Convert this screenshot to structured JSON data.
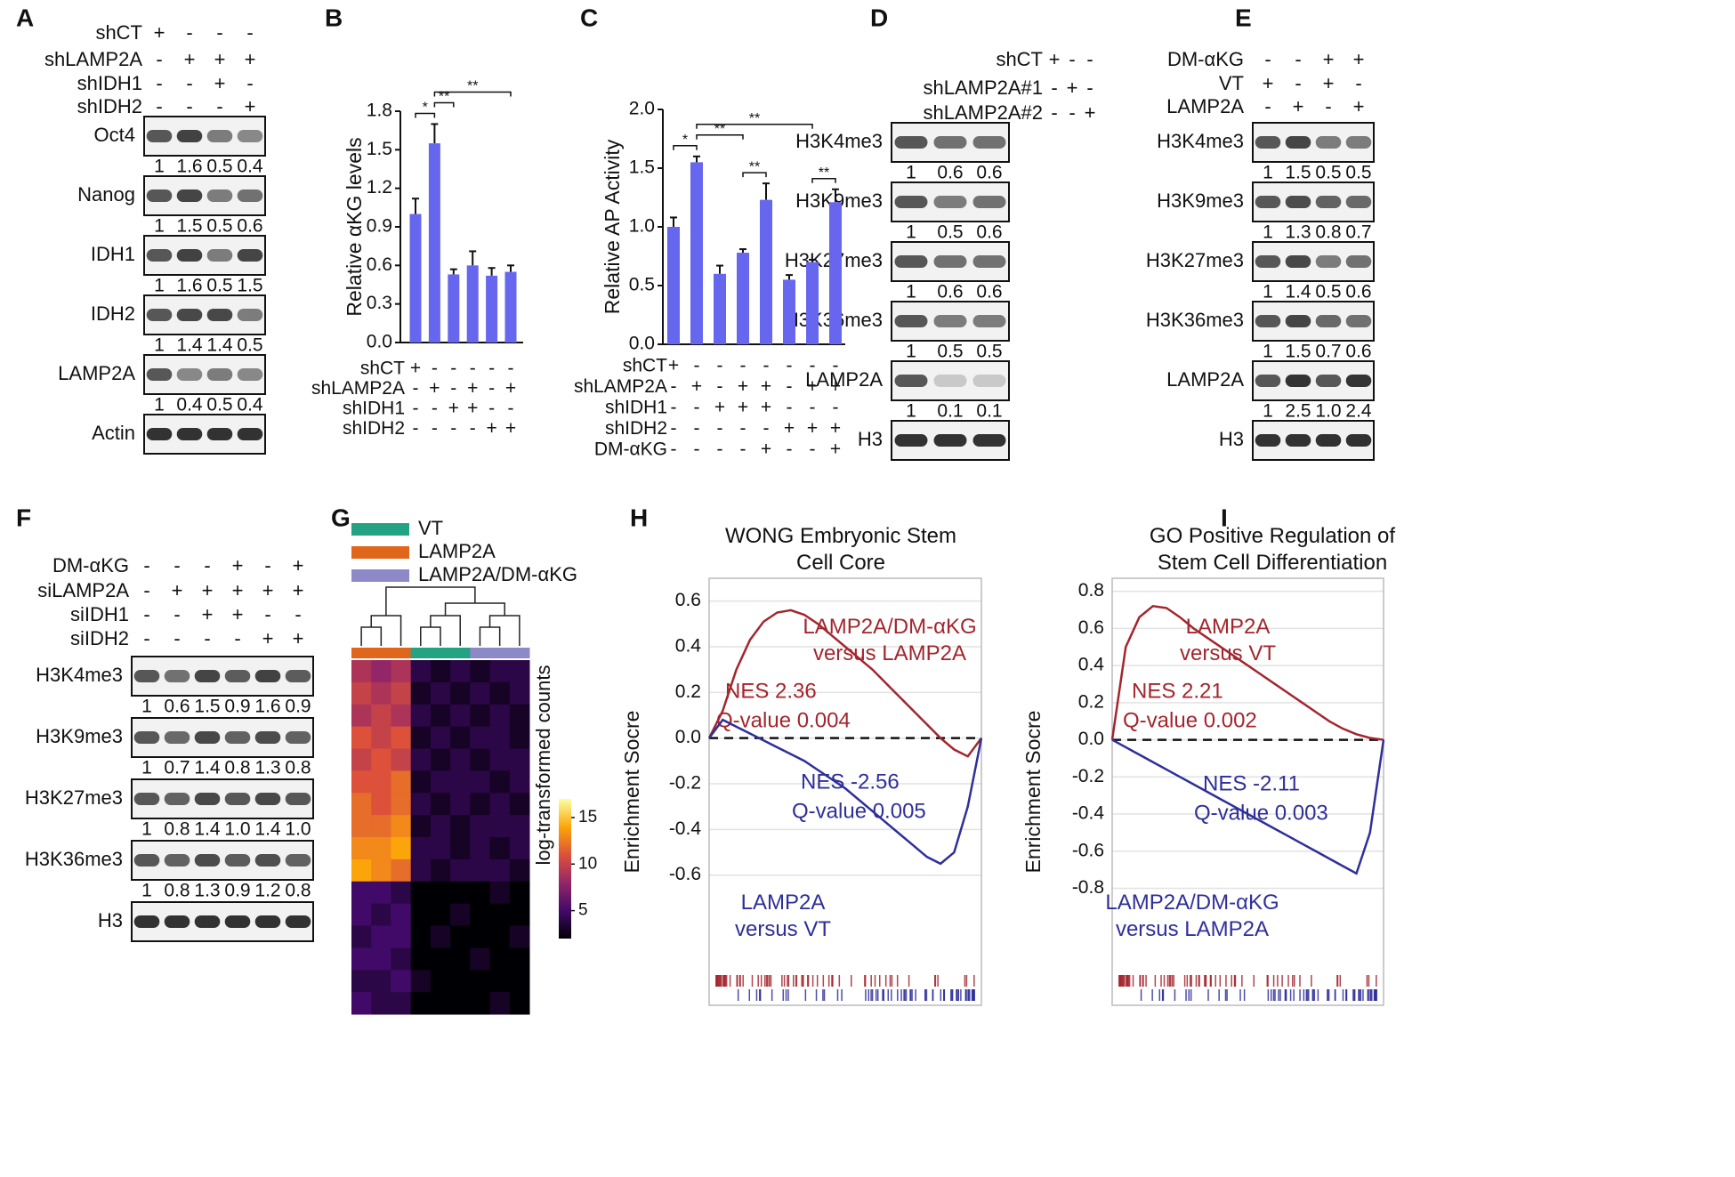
{
  "panel_labels": [
    "A",
    "B",
    "C",
    "D",
    "E",
    "F",
    "G",
    "H",
    "I"
  ],
  "blots": [
    {
      "conditions": [
        {
          "name": "shCT",
          "signs": [
            "+",
            "-",
            "-",
            "-"
          ]
        },
        {
          "name": "shLAMP2A",
          "signs": [
            "-",
            "+",
            "+",
            "+"
          ]
        },
        {
          "name": "shIDH1",
          "signs": [
            "-",
            "-",
            "+",
            "-"
          ]
        },
        {
          "name": "shIDH2",
          "signs": [
            "-",
            "-",
            "-",
            "+"
          ]
        }
      ],
      "rows": [
        {
          "name": "Oct4",
          "quant": [
            1,
            1.6,
            0.5,
            0.4
          ]
        },
        {
          "name": "Nanog",
          "quant": [
            1,
            1.5,
            0.5,
            0.6
          ]
        },
        {
          "name": "IDH1",
          "quant": [
            1,
            1.6,
            0.5,
            1.5
          ]
        },
        {
          "name": "IDH2",
          "quant": [
            1,
            1.4,
            1.4,
            0.5
          ]
        },
        {
          "name": "LAMP2A",
          "quant": [
            1,
            0.4,
            0.5,
            0.4
          ]
        },
        {
          "name": "Actin"
        }
      ]
    },
    {
      "conditions": [
        {
          "name": "shCT",
          "signs": [
            "+",
            "-",
            "-"
          ]
        },
        {
          "name": "shLAMP2A#1",
          "signs": [
            "-",
            "+",
            "-"
          ]
        },
        {
          "name": "shLAMP2A#2",
          "signs": [
            "-",
            "-",
            "+"
          ]
        }
      ],
      "rows": [
        {
          "name": "H3K4me3",
          "quant": [
            1,
            0.6,
            0.6
          ]
        },
        {
          "name": "H3K9me3",
          "quant": [
            1,
            0.5,
            0.6
          ]
        },
        {
          "name": "H3K27me3",
          "quant": [
            1,
            0.6,
            0.6
          ]
        },
        {
          "name": "H3K36me3",
          "quant": [
            1,
            0.5,
            0.5
          ]
        },
        {
          "name": "LAMP2A",
          "quant": [
            1,
            0.1,
            0.1
          ]
        },
        {
          "name": "H3"
        }
      ]
    },
    {
      "conditions": [
        {
          "name": "DM-αKG",
          "signs": [
            "-",
            "-",
            "+",
            "+"
          ]
        },
        {
          "name": "VT",
          "signs": [
            "+",
            "-",
            "+",
            "-"
          ]
        },
        {
          "name": "LAMP2A",
          "signs": [
            "-",
            "+",
            "-",
            "+"
          ]
        }
      ],
      "rows": [
        {
          "name": "H3K4me3",
          "quant": [
            1,
            1.5,
            0.5,
            0.5
          ]
        },
        {
          "name": "H3K9me3",
          "quant": [
            1,
            1.3,
            0.8,
            0.7
          ]
        },
        {
          "name": "H3K27me3",
          "quant": [
            1,
            1.4,
            0.5,
            0.6
          ]
        },
        {
          "name": "H3K36me3",
          "quant": [
            1,
            1.5,
            0.7,
            0.6
          ]
        },
        {
          "name": "LAMP2A",
          "quant": [
            1,
            2.5,
            1.0,
            2.4
          ],
          "quant_labels": [
            "1",
            "2.5",
            "1.0",
            "2.4"
          ]
        },
        {
          "name": "H3"
        }
      ]
    },
    {
      "conditions": [
        {
          "name": "DM-αKG",
          "signs": [
            "-",
            "-",
            "-",
            "+",
            "-",
            "+"
          ]
        },
        {
          "name": "siLAMP2A",
          "signs": [
            "-",
            "+",
            "+",
            "+",
            "+",
            "+"
          ]
        },
        {
          "name": "siIDH1",
          "signs": [
            "-",
            "-",
            "+",
            "+",
            "-",
            "-"
          ]
        },
        {
          "name": "siIDH2",
          "signs": [
            "-",
            "-",
            "-",
            "-",
            "+",
            "+"
          ]
        }
      ],
      "rows": [
        {
          "name": "H3K4me3",
          "quant": [
            1,
            0.6,
            1.5,
            0.9,
            1.6,
            0.9
          ]
        },
        {
          "name": "H3K9me3",
          "quant": [
            1,
            0.7,
            1.4,
            0.8,
            1.3,
            0.8
          ]
        },
        {
          "name": "H3K27me3",
          "quant": [
            1,
            0.8,
            1.4,
            1.0,
            1.4,
            1.0
          ],
          "quant_labels": [
            "1",
            "0.8",
            "1.4",
            "1.0",
            "1.4",
            "1.0"
          ]
        },
        {
          "name": "H3K36me3",
          "quant": [
            1,
            0.8,
            1.3,
            0.9,
            1.2,
            0.8
          ]
        },
        {
          "name": "H3"
        }
      ]
    }
  ],
  "chart_data": [
    {
      "type": "bar",
      "ylabel": "Relative αKG levels",
      "color": "#6666ee",
      "values": [
        1.0,
        1.55,
        0.53,
        0.6,
        0.52,
        0.55
      ],
      "errors": [
        0.12,
        0.15,
        0.04,
        0.11,
        0.06,
        0.05
      ],
      "ylim": [
        0,
        1.8
      ],
      "yticks": [
        {
          "value": 0,
          "label": "0.0"
        },
        0.3,
        0.6,
        0.9,
        1.2,
        1.5,
        1.8
      ],
      "conditions": [
        {
          "name": "shCT",
          "signs": [
            "+",
            "-",
            "-",
            "-",
            "-",
            "-"
          ]
        },
        {
          "name": "shLAMP2A",
          "signs": [
            "-",
            "+",
            "-",
            "+",
            "-",
            "+"
          ]
        },
        {
          "name": "shIDH1",
          "signs": [
            "-",
            "-",
            "+",
            "+",
            "-",
            "-"
          ]
        },
        {
          "name": "shIDH2",
          "signs": [
            "-",
            "-",
            "-",
            "-",
            "+",
            "+"
          ]
        }
      ],
      "significance": [
        {
          "from": 0,
          "to": 1,
          "label": "*"
        },
        {
          "from": 1,
          "to": 2,
          "label": "**"
        },
        {
          "from": 1,
          "to": 5,
          "label": "**"
        }
      ]
    },
    {
      "type": "bar",
      "ylabel": "Relative AP Activity",
      "color": "#6666ee",
      "values": [
        1.0,
        1.55,
        0.6,
        0.78,
        1.23,
        0.55,
        0.7,
        1.21
      ],
      "errors": [
        0.08,
        0.05,
        0.07,
        0.03,
        0.14,
        0.04,
        0.02,
        0.11
      ],
      "ylim": [
        0,
        2.0
      ],
      "yticks": [
        {
          "value": 0,
          "label": "0.0"
        },
        0.5,
        {
          "value": 1,
          "label": "1.0"
        },
        1.5,
        {
          "value": 2,
          "label": "2.0"
        }
      ],
      "conditions": [
        {
          "name": "shCT",
          "signs": [
            "+",
            "-",
            "-",
            "-",
            "-",
            "-",
            "-",
            "-"
          ]
        },
        {
          "name": "shLAMP2A",
          "signs": [
            "-",
            "+",
            "-",
            "+",
            "+",
            "-",
            "+",
            "+"
          ]
        },
        {
          "name": "shIDH1",
          "signs": [
            "-",
            "-",
            "+",
            "+",
            "+",
            "-",
            "-",
            "-"
          ]
        },
        {
          "name": "shIDH2",
          "signs": [
            "-",
            "-",
            "-",
            "-",
            "-",
            "+",
            "+",
            "+"
          ]
        },
        {
          "name": "DM-αKG",
          "signs": [
            "-",
            "-",
            "-",
            "-",
            "+",
            "-",
            "-",
            "+"
          ]
        }
      ],
      "significance": [
        {
          "from": 0,
          "to": 1,
          "label": "*"
        },
        {
          "from": 3,
          "to": 4,
          "label": "**"
        },
        {
          "from": 6,
          "to": 7,
          "label": "**"
        },
        {
          "from": 1,
          "to": 3,
          "label": "**"
        },
        {
          "from": 1,
          "to": 6,
          "label": "**"
        }
      ]
    },
    {
      "type": "heatmap",
      "groups": [
        {
          "name": "VT",
          "color": "#23a383"
        },
        {
          "name": "LAMP2A",
          "color": "#e0661c"
        },
        {
          "name": "LAMP2A/DM-αKG",
          "color": "#8d88c8"
        }
      ],
      "column_groups": [
        1,
        1,
        1,
        0,
        0,
        0,
        2,
        2,
        2
      ],
      "values": [
        [
          9,
          8,
          9,
          4,
          3,
          4,
          3,
          4,
          4
        ],
        [
          10,
          9,
          10,
          3,
          4,
          3,
          4,
          3,
          4
        ],
        [
          9,
          10,
          9,
          4,
          3,
          4,
          3,
          4,
          3
        ],
        [
          11,
          10,
          11,
          3,
          4,
          3,
          4,
          4,
          3
        ],
        [
          10,
          11,
          10,
          4,
          3,
          4,
          3,
          4,
          4
        ],
        [
          11,
          11,
          12,
          3,
          4,
          4,
          4,
          3,
          4
        ],
        [
          12,
          11,
          12,
          4,
          3,
          4,
          3,
          4,
          3
        ],
        [
          12,
          12,
          13,
          3,
          4,
          3,
          4,
          4,
          4
        ],
        [
          13,
          13,
          14,
          4,
          4,
          3,
          4,
          3,
          4
        ],
        [
          14,
          13,
          12,
          4,
          3,
          4,
          4,
          4,
          3
        ],
        [
          5,
          5,
          4,
          2,
          2,
          2,
          2,
          3,
          2
        ],
        [
          5,
          4,
          5,
          2,
          2,
          3,
          2,
          2,
          2
        ],
        [
          4,
          5,
          5,
          2,
          3,
          2,
          2,
          2,
          3
        ],
        [
          5,
          5,
          4,
          2,
          2,
          2,
          3,
          2,
          2
        ],
        [
          4,
          4,
          5,
          3,
          2,
          2,
          2,
          2,
          2
        ],
        [
          5,
          4,
          4,
          2,
          2,
          2,
          2,
          3,
          2
        ]
      ],
      "colorbar_label": "log-transformed counts",
      "clim": [
        2,
        17
      ],
      "cticks": [
        5,
        10,
        15
      ]
    },
    {
      "type": "gsea",
      "title": "WONG Embryonic Stem Cell Core",
      "ylabel": "Enrichment Socre",
      "grid": true,
      "ylim": [
        -1.17,
        0.7
      ],
      "yticks": [
        0.6,
        0.4,
        0.2,
        {
          "value": 0,
          "label": "0.0"
        },
        -0.2,
        -0.4,
        -0.6
      ],
      "series": [
        {
          "name": "LAMP2A/DM-αKG versus LAMP2A",
          "color": "#a3262e",
          "nes": "NES 2.36",
          "qvalue": "Q-value 0.004",
          "values": [
            0,
            0.12,
            0.3,
            0.43,
            0.51,
            0.55,
            0.56,
            0.54,
            0.5,
            0.45,
            0.4,
            0.35,
            0.3,
            0.24,
            0.18,
            0.12,
            0.06,
            0.0,
            -0.05,
            -0.08,
            0
          ]
        },
        {
          "name": "LAMP2A versus VT",
          "color": "#2f2f9a",
          "nes": "NES -2.56",
          "qvalue": "Q-value 0.005",
          "values": [
            0,
            0.08,
            0.05,
            0.02,
            -0.01,
            -0.04,
            -0.07,
            -0.1,
            -0.14,
            -0.18,
            -0.22,
            -0.27,
            -0.32,
            -0.37,
            -0.42,
            -0.47,
            -0.52,
            -0.55,
            -0.5,
            -0.3,
            0
          ]
        }
      ]
    },
    {
      "type": "gsea",
      "title": "GO Positive Regulation of Stem Cell Differentiation",
      "ylabel": "Enrichment Socre",
      "grid": true,
      "ylim": [
        -1.43,
        0.87
      ],
      "yticks": [
        0.8,
        0.6,
        0.4,
        0.2,
        {
          "value": 0,
          "label": "0.0"
        },
        -0.2,
        -0.4,
        -0.6,
        -0.8
      ],
      "series": [
        {
          "name": "LAMP2A versus VT",
          "color": "#a3262e",
          "nes": "NES 2.21",
          "qvalue": "Q-value 0.002",
          "values": [
            0,
            0.5,
            0.66,
            0.72,
            0.71,
            0.66,
            0.6,
            0.55,
            0.5,
            0.45,
            0.4,
            0.35,
            0.3,
            0.25,
            0.2,
            0.15,
            0.1,
            0.06,
            0.03,
            0.01,
            0
          ]
        },
        {
          "name": "LAMP2A/DM-αKG versus LAMP2A",
          "color": "#2f2f9a",
          "nes": "NES -2.11",
          "qvalue": "Q-value 0.003",
          "values": [
            0,
            -0.04,
            -0.08,
            -0.12,
            -0.16,
            -0.2,
            -0.24,
            -0.28,
            -0.32,
            -0.36,
            -0.4,
            -0.44,
            -0.48,
            -0.52,
            -0.56,
            -0.6,
            -0.64,
            -0.68,
            -0.72,
            -0.5,
            0
          ]
        }
      ]
    }
  ]
}
